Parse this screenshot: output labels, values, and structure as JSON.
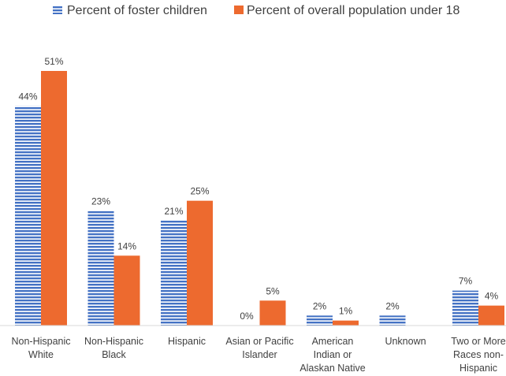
{
  "chart_data": {
    "type": "bar",
    "categories": [
      [
        "Non-Hispanic",
        "White"
      ],
      [
        "Non-Hispanic",
        "Black"
      ],
      [
        "Hispanic"
      ],
      [
        "Asian or Pacific",
        "Islander"
      ],
      [
        "American",
        "Indian or",
        "Alaskan Native"
      ],
      [
        "Unknown"
      ],
      [
        "Two or More",
        "Races non-",
        "Hispanic"
      ]
    ],
    "series": [
      {
        "name": "Percent of foster children",
        "values": [
          44,
          23,
          21,
          0,
          2,
          2,
          7
        ],
        "labels": [
          "44%",
          "23%",
          "21%",
          "0%",
          "2%",
          "2%",
          "7%"
        ],
        "color": "#4472C4",
        "pattern": "horizontal-stripes"
      },
      {
        "name": "Percent of overall population under 18",
        "values": [
          51,
          14,
          25,
          5,
          1,
          null,
          4
        ],
        "labels": [
          "51%",
          "14%",
          "25%",
          "5%",
          "1%",
          "",
          "4%"
        ],
        "color": "#ED6A2F",
        "pattern": "solid"
      }
    ],
    "ylim": [
      0,
      51
    ],
    "legend_position": "top",
    "grid": false
  }
}
